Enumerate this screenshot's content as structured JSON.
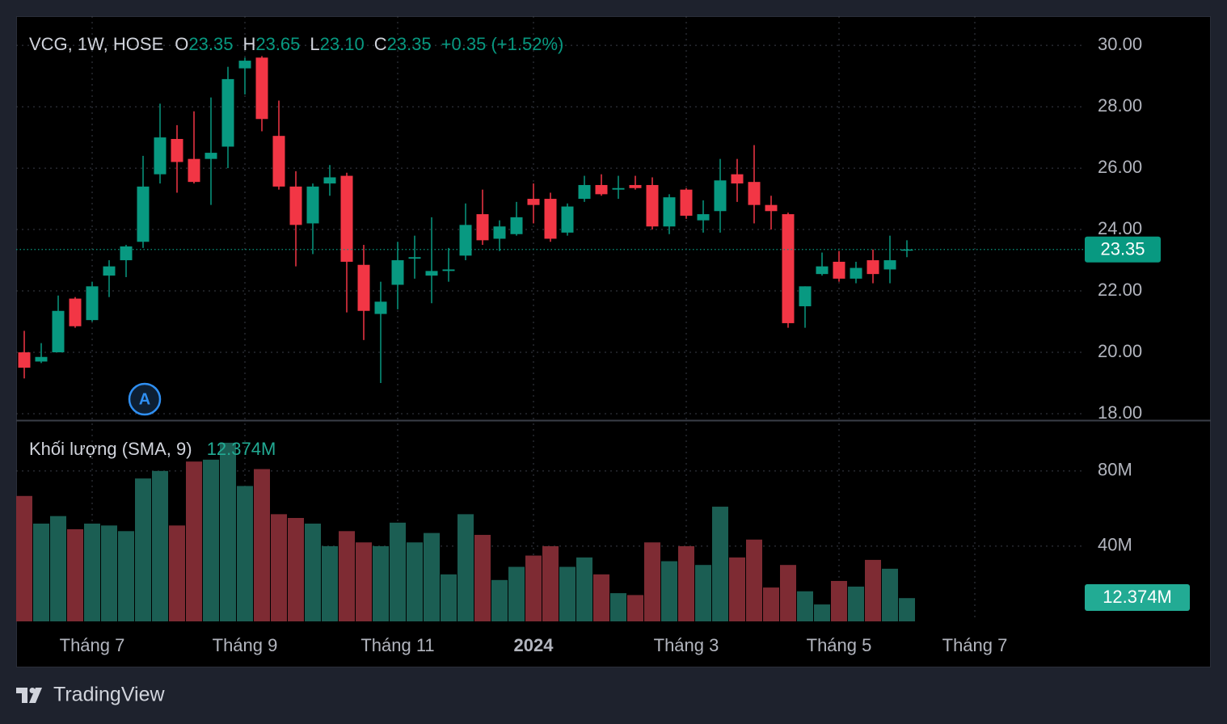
{
  "chart_data": {
    "type": "candlestick",
    "symbol": "VCG, 1W, HOSE",
    "ohlc_legend": [
      {
        "label": "O",
        "value": "23.35"
      },
      {
        "label": "H",
        "value": "23.65"
      },
      {
        "label": "L",
        "value": "23.10"
      },
      {
        "label": "C",
        "value": "23.35"
      }
    ],
    "change": "+0.35 (+1.52%)",
    "categories": [
      null,
      null,
      null,
      null,
      "Tháng 7",
      null,
      null,
      null,
      null,
      null,
      null,
      null,
      null,
      "Tháng 9",
      null,
      null,
      null,
      null,
      null,
      null,
      null,
      null,
      "Tháng 11",
      null,
      null,
      null,
      null,
      null,
      null,
      null,
      "2024",
      null,
      null,
      null,
      null,
      null,
      null,
      null,
      null,
      "Tháng 3",
      null,
      null,
      null,
      null,
      null,
      null,
      null,
      null,
      "Tháng 5",
      null,
      null,
      null,
      null,
      null,
      null,
      null,
      "Tháng 7"
    ],
    "open": [
      20.0,
      19.7,
      20.0,
      21.75,
      21.05,
      22.5,
      23.0,
      23.6,
      25.8,
      26.95,
      26.3,
      26.3,
      26.7,
      29.25,
      29.6,
      27.05,
      25.4,
      24.2,
      25.5,
      25.75,
      22.85,
      21.25,
      22.2,
      23.05,
      22.5,
      22.65,
      23.15,
      24.5,
      23.7,
      23.85,
      25.0,
      25.0,
      23.9,
      25.0,
      25.45,
      25.3,
      25.45,
      25.45,
      24.1,
      25.3,
      24.3,
      24.6,
      25.8,
      25.55,
      24.8,
      24.5,
      21.5,
      22.55,
      22.95,
      22.4,
      23.0,
      22.7,
      23.35,
      null,
      null,
      null,
      null
    ],
    "high": [
      20.7,
      20.3,
      21.85,
      21.8,
      22.3,
      23.0,
      23.5,
      26.4,
      28.1,
      27.4,
      27.85,
      28.3,
      29.3,
      29.6,
      29.65,
      28.2,
      25.9,
      25.5,
      26.1,
      25.85,
      23.5,
      22.3,
      23.6,
      23.8,
      24.4,
      23.4,
      24.85,
      25.3,
      24.3,
      24.9,
      25.5,
      25.2,
      24.85,
      25.75,
      25.8,
      25.75,
      25.75,
      25.7,
      25.15,
      25.35,
      24.95,
      26.3,
      26.3,
      26.75,
      25.1,
      24.55,
      22.15,
      23.25,
      23.3,
      22.95,
      23.35,
      23.8,
      23.65,
      null,
      null,
      null,
      null
    ],
    "low": [
      19.15,
      19.65,
      20.0,
      20.8,
      21.0,
      21.8,
      22.45,
      23.4,
      25.5,
      25.2,
      25.5,
      24.8,
      26.0,
      28.4,
      27.2,
      25.3,
      22.8,
      23.2,
      25.1,
      21.3,
      20.4,
      19.0,
      21.4,
      22.4,
      21.6,
      22.3,
      23.0,
      23.5,
      23.3,
      23.8,
      24.2,
      23.6,
      23.8,
      24.9,
      25.1,
      25.0,
      25.3,
      24.0,
      23.85,
      24.35,
      23.9,
      23.9,
      24.9,
      24.2,
      24.0,
      20.8,
      20.8,
      22.5,
      22.3,
      22.25,
      22.25,
      22.25,
      23.1,
      null,
      null,
      null,
      null
    ],
    "close": [
      19.5,
      19.85,
      21.35,
      20.85,
      22.15,
      22.8,
      23.45,
      25.4,
      27.0,
      26.2,
      25.55,
      26.5,
      28.9,
      29.5,
      27.6,
      25.4,
      24.15,
      25.4,
      25.7,
      22.95,
      21.35,
      21.65,
      23.0,
      23.1,
      22.65,
      22.7,
      24.15,
      23.65,
      24.1,
      24.4,
      24.8,
      23.7,
      24.75,
      25.45,
      25.15,
      25.35,
      25.35,
      24.1,
      25.05,
      24.45,
      24.5,
      25.6,
      25.5,
      24.8,
      24.6,
      20.95,
      22.15,
      22.8,
      22.4,
      22.75,
      22.55,
      23.0,
      23.35,
      null,
      null,
      null,
      null
    ],
    "up_color": "#089981",
    "down_color": "#f23645",
    "ylim": [
      17.79,
      30.95
    ],
    "yticks": [
      {
        "value": 18,
        "label": "18.00"
      },
      {
        "value": 20,
        "label": "20.00"
      },
      {
        "value": 22,
        "label": "22.00"
      },
      {
        "value": 24,
        "label": "24.00"
      },
      {
        "value": 26,
        "label": "26.00"
      },
      {
        "value": 28,
        "label": "28.00"
      },
      {
        "value": 30,
        "label": "30.00"
      }
    ],
    "grid": true,
    "last_price": {
      "value": 23.35,
      "label": "23.35"
    },
    "marker": "A",
    "volume": {
      "name": "Khối lượng (SMA, 9)",
      "value_label": "12.374M",
      "values": [
        66.7,
        52,
        56,
        49,
        52,
        51,
        48,
        76,
        80,
        51,
        85,
        86,
        95,
        72,
        81,
        57,
        55,
        52,
        40,
        48,
        42,
        40,
        52.5,
        42,
        47,
        25,
        57,
        46,
        22,
        29,
        35,
        40,
        29,
        34,
        25,
        15,
        14,
        42,
        32,
        40,
        30,
        61,
        34,
        43.5,
        18,
        30,
        16,
        9,
        21.5,
        18.5,
        32.7,
        28,
        12.374,
        null,
        null,
        null,
        null
      ],
      "up_color": "#1b5e53",
      "down_color": "#7e2b33",
      "ylim": [
        0,
        107
      ],
      "yticks": [
        {
          "value": 40,
          "label": "40M"
        },
        {
          "value": 80,
          "label": "80M"
        }
      ],
      "last": {
        "value": 12.374,
        "label": "12.374M"
      }
    }
  },
  "footer": {
    "brand": "TradingView"
  }
}
